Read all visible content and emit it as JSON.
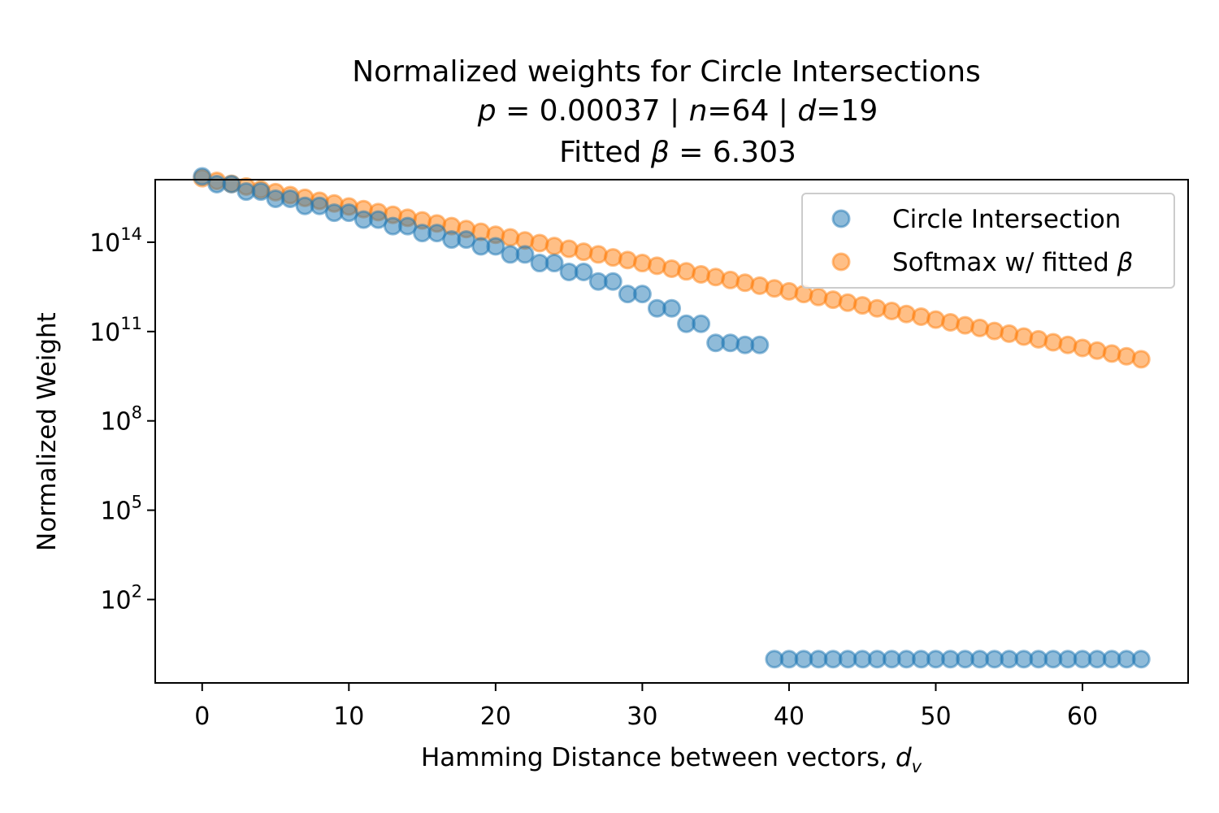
{
  "chart_data": {
    "type": "scatter",
    "title": {
      "line1": "Normalized weights for Circle Intersections",
      "line2_p": "p",
      "line2_p_val": " = 0.00037 | ",
      "line2_n": "n",
      "line2_n_val": "=64 | ",
      "line2_d": "d",
      "line2_d_val": "=19",
      "line3_pre": "Fitted ",
      "line3_beta": "β",
      "line3_val": " = 6.303"
    },
    "xlabel": {
      "text": "Hamming Distance between vectors, ",
      "var": "d",
      "sub": "v"
    },
    "ylabel": "Normalized Weight",
    "xlim": [
      -3.2,
      67.2
    ],
    "ylog10lim": [
      -0.8,
      16.1
    ],
    "yscale": "log",
    "grid": false,
    "legend_position": "top-right",
    "x_ticks": [
      0,
      10,
      20,
      30,
      40,
      50,
      60
    ],
    "y_ticks": [
      {
        "base": "10",
        "exp": "2",
        "log10": 2
      },
      {
        "base": "10",
        "exp": "5",
        "log10": 5
      },
      {
        "base": "10",
        "exp": "8",
        "log10": 8
      },
      {
        "base": "10",
        "exp": "11",
        "log10": 11
      },
      {
        "base": "10",
        "exp": "14",
        "log10": 14
      }
    ],
    "series": [
      {
        "name": "Circle Intersection",
        "color": "#1f77b4",
        "x": [
          0,
          1,
          2,
          3,
          4,
          5,
          6,
          7,
          8,
          9,
          10,
          11,
          12,
          13,
          14,
          15,
          16,
          17,
          18,
          19,
          20,
          21,
          22,
          23,
          24,
          25,
          26,
          27,
          28,
          29,
          30,
          31,
          32,
          33,
          34,
          35,
          36,
          37,
          38,
          39,
          40,
          41,
          42,
          43,
          44,
          45,
          46,
          47,
          48,
          49,
          50,
          51,
          52,
          53,
          54,
          55,
          56,
          57,
          58,
          59,
          60,
          61,
          62,
          63,
          64
        ],
        "log10_y": [
          16.21,
          15.95,
          15.95,
          15.7,
          15.7,
          15.46,
          15.46,
          15.22,
          15.22,
          14.99,
          14.99,
          14.76,
          14.76,
          14.54,
          14.54,
          14.31,
          14.31,
          14.09,
          14.09,
          13.86,
          13.86,
          13.59,
          13.59,
          13.3,
          13.3,
          13.0,
          13.0,
          12.68,
          12.68,
          12.26,
          12.26,
          11.78,
          11.78,
          11.26,
          11.26,
          10.62,
          10.62,
          10.55,
          10.55,
          0.0,
          0.0,
          0.0,
          0.0,
          0.0,
          0.0,
          0.0,
          0.0,
          0.0,
          0.0,
          0.0,
          0.0,
          0.0,
          0.0,
          0.0,
          0.0,
          0.0,
          0.0,
          0.0,
          0.0,
          0.0,
          0.0,
          0.0,
          0.0,
          0.0,
          0.0
        ]
      },
      {
        "name": "Softmax w/ fitted ",
        "name_symbol": "β",
        "color": "#ff7f0e",
        "x": [
          0,
          1,
          2,
          3,
          4,
          5,
          6,
          7,
          8,
          9,
          10,
          11,
          12,
          13,
          14,
          15,
          16,
          17,
          18,
          19,
          20,
          21,
          22,
          23,
          24,
          25,
          26,
          27,
          28,
          29,
          30,
          31,
          32,
          33,
          34,
          35,
          36,
          37,
          38,
          39,
          40,
          41,
          42,
          43,
          44,
          45,
          46,
          47,
          48,
          49,
          50,
          51,
          52,
          53,
          54,
          55,
          56,
          57,
          58,
          59,
          60,
          61,
          62,
          63,
          64
        ],
        "log10_y": [
          16.15,
          16.06,
          15.96,
          15.87,
          15.77,
          15.68,
          15.58,
          15.49,
          15.39,
          15.3,
          15.2,
          15.11,
          15.01,
          14.92,
          14.82,
          14.73,
          14.63,
          14.54,
          14.44,
          14.35,
          14.25,
          14.16,
          14.06,
          13.97,
          13.87,
          13.78,
          13.68,
          13.59,
          13.49,
          13.4,
          13.3,
          13.21,
          13.11,
          13.02,
          12.92,
          12.83,
          12.73,
          12.64,
          12.54,
          12.45,
          12.35,
          12.26,
          12.16,
          12.07,
          11.97,
          11.88,
          11.78,
          11.69,
          11.59,
          11.5,
          11.4,
          11.31,
          11.21,
          11.12,
          11.02,
          10.93,
          10.83,
          10.74,
          10.64,
          10.55,
          10.45,
          10.36,
          10.26,
          10.17,
          10.07
        ]
      }
    ]
  }
}
